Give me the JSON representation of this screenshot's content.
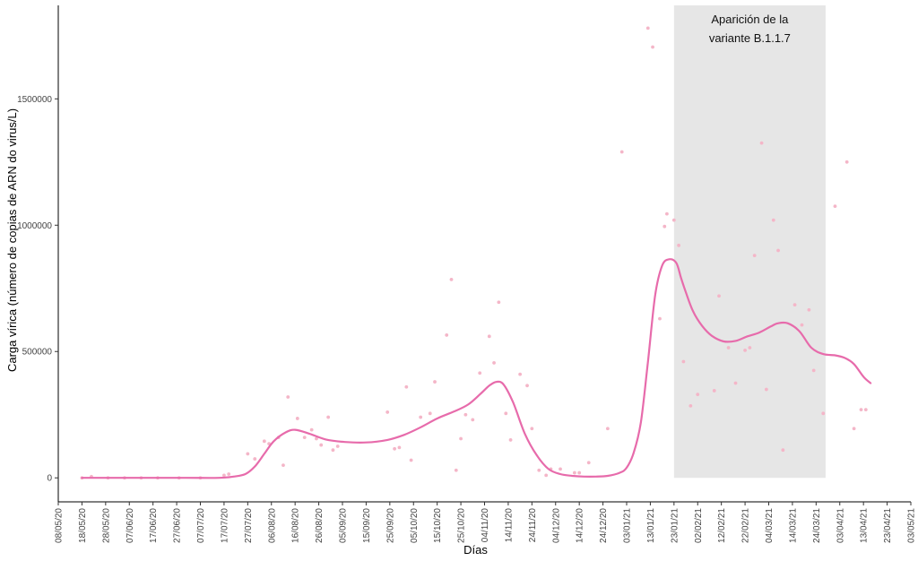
{
  "chart_data": {
    "type": "scatter",
    "title": "",
    "xlabel": "Días",
    "ylabel": "Carga vírica (número de copias de ARN do virus/L)",
    "xlim": [
      "2020-05-08",
      "2021-05-03"
    ],
    "ylim": [
      -95000,
      1870000
    ],
    "yticks": [
      0,
      500000,
      1000000,
      1500000
    ],
    "ytick_labels": [
      "0",
      "500000",
      "1000000",
      "1500000"
    ],
    "xtick_labels": [
      "08/05/20",
      "18/05/20",
      "28/05/20",
      "07/06/20",
      "17/06/20",
      "27/06/20",
      "07/07/20",
      "17/07/20",
      "27/07/20",
      "06/08/20",
      "16/08/20",
      "26/08/20",
      "05/09/20",
      "15/09/20",
      "25/09/20",
      "05/10/20",
      "15/10/20",
      "25/10/20",
      "04/11/20",
      "14/11/20",
      "24/11/20",
      "04/12/20",
      "14/12/20",
      "24/12/20",
      "03/01/21",
      "13/01/21",
      "23/01/21",
      "02/02/21",
      "12/02/21",
      "22/02/21",
      "04/03/21",
      "14/03/21",
      "24/03/21",
      "03/04/21",
      "13/04/21",
      "23/04/21",
      "03/05/21"
    ],
    "grid": false,
    "colors": {
      "points": "#f4b6c8",
      "smooth": "#e76bab",
      "shade": "#e6e6e6",
      "axis": "#000000"
    },
    "annotation": {
      "lines": [
        "Aparición de la",
        "variante B.1.1.7"
      ],
      "shade_x": [
        "2021-01-23",
        "2021-03-28"
      ]
    },
    "series": [
      {
        "type": "scatter",
        "x": [
          "2020-05-18",
          "2020-05-22",
          "2020-05-29",
          "2020-06-05",
          "2020-06-12",
          "2020-06-19",
          "2020-06-28",
          "2020-07-07",
          "2020-07-17",
          "2020-07-19",
          "2020-07-27",
          "2020-07-30",
          "2020-08-03",
          "2020-08-05",
          "2020-08-09",
          "2020-08-11",
          "2020-08-13",
          "2020-08-17",
          "2020-08-20",
          "2020-08-23",
          "2020-08-25",
          "2020-08-27",
          "2020-08-30",
          "2020-09-01",
          "2020-09-03",
          "2020-09-24",
          "2020-09-27",
          "2020-09-29",
          "2020-10-02",
          "2020-10-04",
          "2020-10-08",
          "2020-10-12",
          "2020-10-14",
          "2020-10-19",
          "2020-10-21",
          "2020-10-23",
          "2020-10-25",
          "2020-10-27",
          "2020-10-30",
          "2020-11-02",
          "2020-11-06",
          "2020-11-08",
          "2020-11-10",
          "2020-11-13",
          "2020-11-15",
          "2020-11-19",
          "2020-11-22",
          "2020-11-24",
          "2020-11-27",
          "2020-11-30",
          "2020-12-02",
          "2020-12-06",
          "2020-12-12",
          "2020-12-14",
          "2020-12-18",
          "2020-12-26",
          "2021-01-01",
          "2021-01-12",
          "2021-01-14",
          "2021-01-17",
          "2021-01-19",
          "2021-01-20",
          "2021-01-23",
          "2021-01-25",
          "2021-01-27",
          "2021-01-30",
          "2021-02-02",
          "2021-02-09",
          "2021-02-11",
          "2021-02-15",
          "2021-02-18",
          "2021-02-22",
          "2021-02-24",
          "2021-02-26",
          "2021-03-01",
          "2021-03-03",
          "2021-03-06",
          "2021-03-08",
          "2021-03-10",
          "2021-03-15",
          "2021-03-18",
          "2021-03-21",
          "2021-03-23",
          "2021-03-27",
          "2021-04-01",
          "2021-04-06",
          "2021-04-09",
          "2021-04-12",
          "2021-04-14"
        ],
        "y": [
          0,
          5000,
          0,
          0,
          0,
          0,
          0,
          0,
          10000,
          15000,
          95000,
          75000,
          145000,
          135000,
          160000,
          50000,
          320000,
          235000,
          160000,
          190000,
          155000,
          130000,
          240000,
          110000,
          125000,
          260000,
          115000,
          120000,
          360000,
          70000,
          240000,
          255000,
          380000,
          565000,
          785000,
          30000,
          155000,
          250000,
          230000,
          415000,
          560000,
          455000,
          695000,
          255000,
          150000,
          410000,
          365000,
          195000,
          30000,
          10000,
          35000,
          35000,
          20000,
          20000,
          60000,
          195000,
          1290000,
          1780000,
          1705000,
          630000,
          995000,
          1045000,
          1020000,
          920000,
          460000,
          285000,
          330000,
          345000,
          720000,
          515000,
          375000,
          505000,
          515000,
          880000,
          1325000,
          350000,
          1020000,
          900000,
          110000,
          685000,
          605000,
          665000,
          425000,
          255000,
          1075000,
          1250000,
          195000,
          270000,
          270000
        ]
      },
      {
        "type": "line",
        "x": [
          "2020-05-18",
          "2020-06-10",
          "2020-07-01",
          "2020-07-15",
          "2020-07-21",
          "2020-07-26",
          "2020-07-30",
          "2020-08-03",
          "2020-08-07",
          "2020-08-12",
          "2020-08-16",
          "2020-08-22",
          "2020-08-29",
          "2020-09-06",
          "2020-09-15",
          "2020-09-24",
          "2020-10-01",
          "2020-10-08",
          "2020-10-15",
          "2020-10-22",
          "2020-10-28",
          "2020-11-02",
          "2020-11-06",
          "2020-11-09",
          "2020-11-12",
          "2020-11-16",
          "2020-11-21",
          "2020-11-26",
          "2020-12-01",
          "2020-12-06",
          "2020-12-11",
          "2020-12-16",
          "2020-12-21",
          "2020-12-26",
          "2020-12-31",
          "2021-01-03",
          "2021-01-06",
          "2021-01-09",
          "2021-01-12",
          "2021-01-15",
          "2021-01-18",
          "2021-01-21",
          "2021-01-24",
          "2021-01-26",
          "2021-01-28",
          "2021-01-31",
          "2021-02-04",
          "2021-02-08",
          "2021-02-13",
          "2021-02-18",
          "2021-02-23",
          "2021-02-28",
          "2021-03-05",
          "2021-03-08",
          "2021-03-12",
          "2021-03-17",
          "2021-03-22",
          "2021-03-27",
          "2021-04-01",
          "2021-04-05",
          "2021-04-09",
          "2021-04-13",
          "2021-04-16"
        ],
        "y": [
          0,
          0,
          0,
          0,
          5000,
          15000,
          45000,
          95000,
          145000,
          180000,
          190000,
          175000,
          152000,
          142000,
          140000,
          150000,
          170000,
          200000,
          235000,
          262000,
          290000,
          330000,
          365000,
          380000,
          370000,
          300000,
          175000,
          90000,
          35000,
          15000,
          8000,
          5000,
          5000,
          8000,
          20000,
          40000,
          100000,
          220000,
          460000,
          720000,
          840000,
          865000,
          850000,
          790000,
          735000,
          660000,
          600000,
          562000,
          540000,
          542000,
          560000,
          575000,
          600000,
          612000,
          612000,
          580000,
          515000,
          490000,
          485000,
          475000,
          450000,
          400000,
          375000
        ]
      }
    ]
  }
}
